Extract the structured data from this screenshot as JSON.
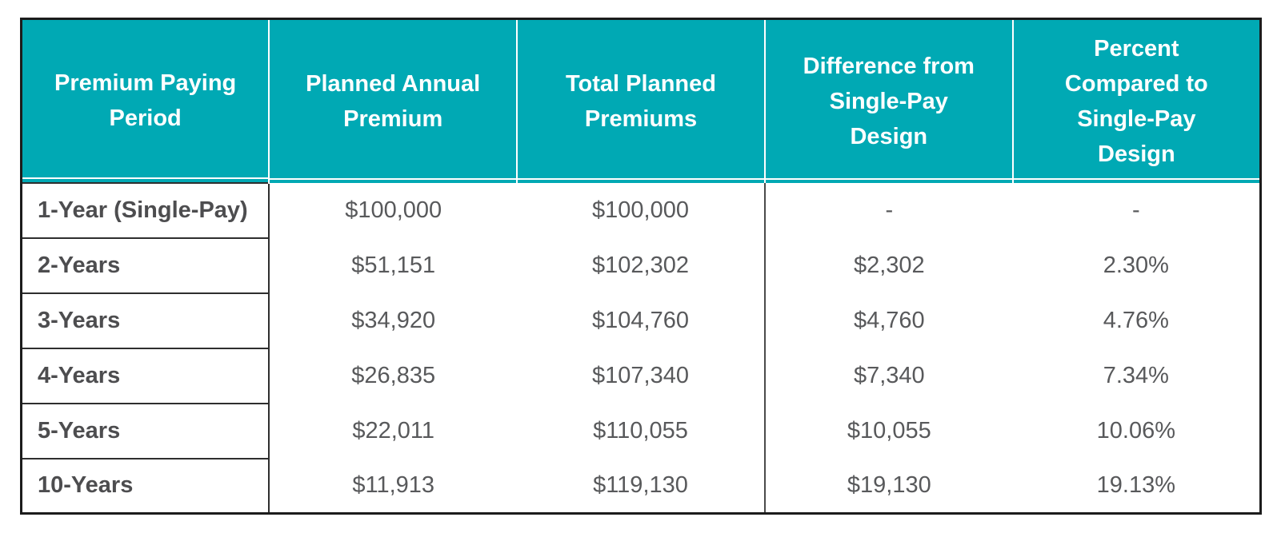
{
  "colors": {
    "header_bg": "#00A9B4",
    "header_text": "#FFFFFF",
    "value_text": "#58595B",
    "label_text": "#4D4D4F",
    "grid_dark": "#2E2E2E",
    "outer_border": "#1C1C1C",
    "header_divider": "#FFFFFF",
    "column_divider": "#4A4A4A"
  },
  "chart_data": {
    "type": "table",
    "columns": [
      "Premium Paying Period",
      "Planned Annual Premium",
      "Total Planned Premiums",
      "Difference from Single-Pay Design",
      "Percent Compared to Single-Pay Design"
    ],
    "rows": [
      [
        "1-Year (Single-Pay)",
        "$100,000",
        "$100,000",
        "-",
        "-"
      ],
      [
        "2-Years",
        "$51,151",
        "$102,302",
        "$2,302",
        "2.30%"
      ],
      [
        "3-Years",
        "$34,920",
        "$104,760",
        "$4,760",
        "4.76%"
      ],
      [
        "4-Years",
        "$26,835",
        "$107,340",
        "$7,340",
        "7.34%"
      ],
      [
        "5-Years",
        "$22,011",
        "$110,055",
        "$10,055",
        "10.06%"
      ],
      [
        "10-Years",
        "$11,913",
        "$119,130",
        "$19,130",
        "19.13%"
      ]
    ]
  }
}
